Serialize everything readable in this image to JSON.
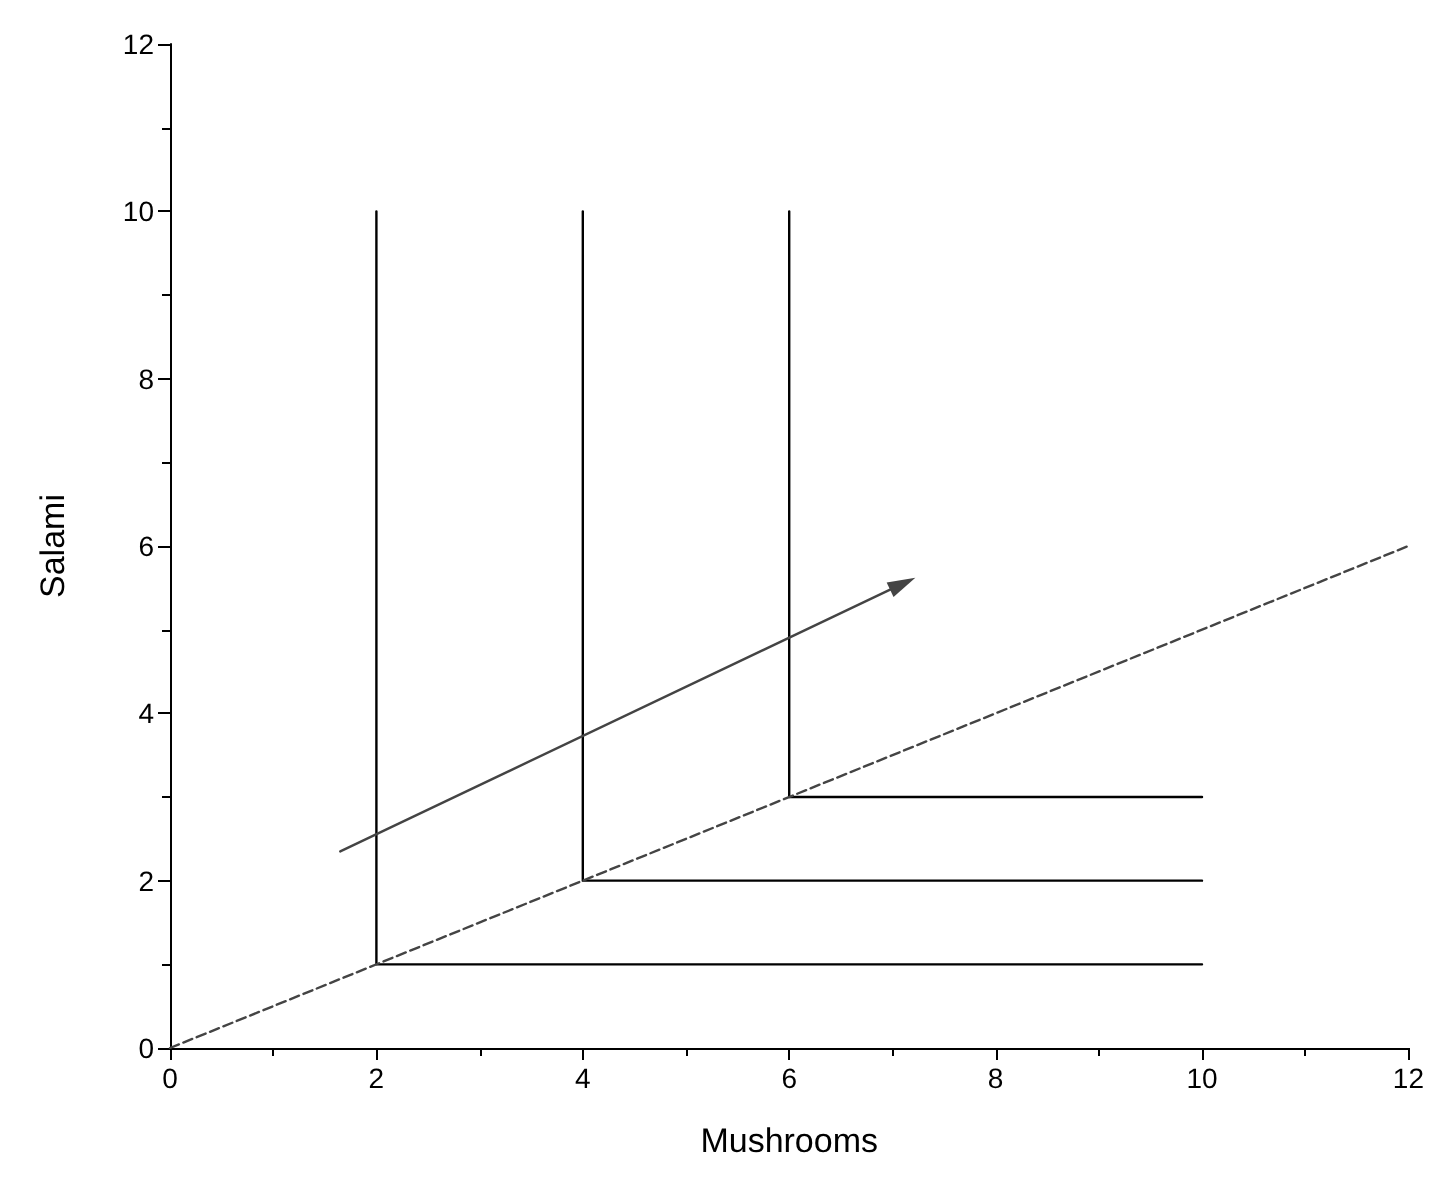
{
  "chart_data": {
    "type": "line",
    "xlabel": "Mushrooms",
    "ylabel": "Salami",
    "xlim": [
      0,
      12
    ],
    "xticks": [
      0,
      2,
      4,
      6,
      8,
      10,
      12
    ],
    "ylim": [
      0,
      12
    ],
    "yticks": [
      0,
      2,
      4,
      6,
      8,
      10,
      12
    ],
    "grid": false,
    "marker": "none",
    "series": [
      {
        "color": "#000000",
        "x": [
          2,
          2,
          10
        ],
        "values": [
          10,
          1,
          1
        ]
      },
      {
        "color": "#000000",
        "x": [
          4,
          4,
          10
        ],
        "values": [
          10,
          2,
          2
        ]
      },
      {
        "color": "#000000",
        "x": [
          6,
          6,
          10
        ],
        "values": [
          10,
          3,
          3
        ]
      },
      {
        "color": "#444444",
        "x": [
          0,
          12
        ],
        "values": [
          0,
          6
        ],
        "line_style": "dashed"
      },
      {
        "color": "#444444",
        "x": [
          1.65,
          7.1
        ],
        "values": [
          2.35,
          5.55
        ],
        "marker": "triangle"
      }
    ]
  }
}
